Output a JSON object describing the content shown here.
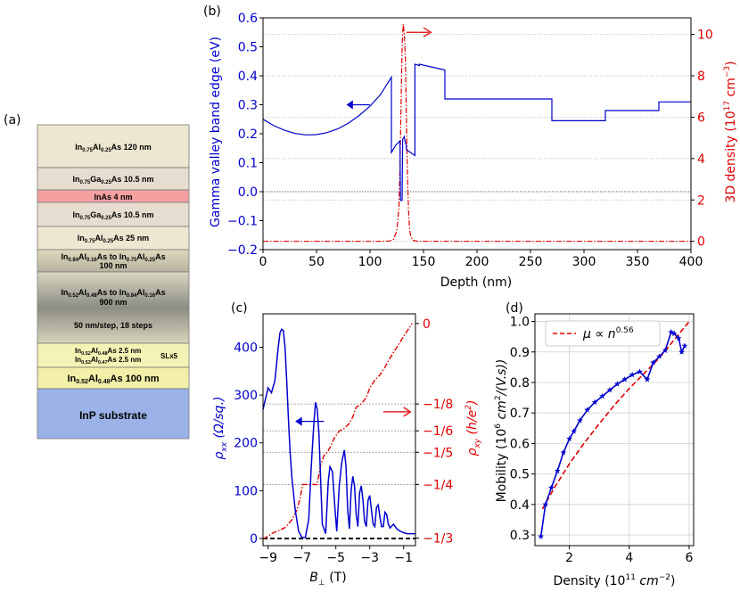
{
  "panels": {
    "a": "(a)",
    "b": "(b)",
    "c": "(c)",
    "d": "(d)"
  },
  "layers": [
    {
      "label": "In0.75Al0.25As  120 nm",
      "color": "#ede6d0"
    },
    {
      "label": "In0.75Ga0.25As  10.5 nm",
      "color": "#e6ddd0"
    },
    {
      "label": "InAs 4 nm",
      "color": "#f4a0a0"
    },
    {
      "label": "In0.75Ga0.25As  10.5 nm",
      "color": "#e6ddd0"
    },
    {
      "label": "In0.75Al0.25As  25 nm",
      "color": "#ede6d0"
    },
    {
      "label": "In0.84Al0.16As to In0.75Al0.25As 100 nm",
      "color": "#cfcab0"
    },
    {
      "label": "In0.52Al0.48As to In0.84Al0.16As 900 nm | 50 nm/step, 18 steps",
      "color": "#a9a89a"
    },
    {
      "label": "In0.52Al0.48As 2.5 nm / In0.53Al0.47As 2.5 nm  SLx5",
      "color": "#f4f2b4"
    },
    {
      "label": "In0.52Al0.48As 100 nm",
      "color": "#f1efa8"
    },
    {
      "label": "InP substrate",
      "color": "#9bb2e8"
    }
  ],
  "layer_text": {
    "l0": [
      "In",
      "0.75",
      "Al",
      "0.25",
      "As  120 nm"
    ],
    "l1": [
      "In",
      "0.75",
      "Ga",
      "0.25",
      "As  10.5 nm"
    ],
    "l2": "InAs 4 nm",
    "l3": [
      "In",
      "0.75",
      "Ga",
      "0.25",
      "As  10.5 nm"
    ],
    "l4": [
      "In",
      "0.75",
      "Al",
      "0.25",
      "As  25 nm"
    ],
    "l5a": [
      "In",
      "0.84",
      "Al",
      "0.16",
      "As to In",
      "0.75",
      "Al",
      "0.25",
      "As"
    ],
    "l5b": "100 nm",
    "l6a": [
      "In",
      "0.52",
      "Al",
      "0.48",
      "As to In",
      "0.84",
      "Al",
      "0.16",
      "As"
    ],
    "l6b": "900 nm",
    "l6c": "50 nm/step, 18 steps",
    "l7a": [
      "In",
      "0.52",
      "Al",
      "0.48",
      "As 2.5 nm"
    ],
    "l7b": [
      "In",
      "0.53",
      "Al",
      "0.47",
      "As 2.5 nm"
    ],
    "l7c": "SLx5",
    "l8": [
      "In",
      "0.52",
      "Al",
      "0.48",
      "As 100 nm"
    ],
    "l9": "InP substrate"
  },
  "chart_data": [
    {
      "id": "b",
      "type": "line",
      "xlabel": "Depth (nm)",
      "ylabel": "Gamma valley band edge (eV)",
      "y2label": "3D density (10^17 cm^-3)",
      "y2label_parts": [
        "3D density (10",
        "17",
        " cm",
        "−3",
        ")"
      ],
      "xlim": [
        0,
        400
      ],
      "ylim": [
        -0.2,
        0.6
      ],
      "y2lim": [
        -0.4,
        10.8
      ],
      "xticks": [
        0,
        50,
        100,
        150,
        200,
        250,
        300,
        350,
        400
      ],
      "yticks": [
        "−0.2",
        "−0.1",
        "0.0",
        "0.1",
        "0.2",
        "0.3",
        "0.4",
        "0.5",
        "0.6"
      ],
      "y2ticks": [
        0,
        2,
        4,
        6,
        8,
        10
      ],
      "colors": {
        "band": "#0000cc",
        "density": "#dd0000"
      },
      "series": [
        {
          "axis": "left",
          "x": [
            0,
            10,
            20,
            30,
            40,
            50,
            60,
            70,
            80,
            90,
            100,
            110,
            120,
            120,
            124,
            128,
            128.5,
            130,
            130.5,
            132,
            133,
            134,
            134,
            142,
            142,
            146,
            146,
            170,
            170,
            270,
            270,
            320,
            320,
            370,
            370,
            400
          ],
          "y": [
            0.25,
            0.228,
            0.212,
            0.201,
            0.196,
            0.197,
            0.204,
            0.217,
            0.237,
            0.263,
            0.295,
            0.336,
            0.395,
            0.135,
            0.16,
            0.175,
            -0.03,
            -0.03,
            0.18,
            0.19,
            0.17,
            0.16,
            0.145,
            0.125,
            0.44,
            0.435,
            0.44,
            0.42,
            0.32,
            0.32,
            0.245,
            0.245,
            0.28,
            0.28,
            0.31,
            0.31
          ]
        },
        {
          "axis": "right",
          "x": [
            0,
            110,
            118,
            122,
            125,
            127,
            128,
            129,
            130,
            131,
            132,
            133,
            134,
            135,
            136,
            137,
            138,
            140,
            145,
            150,
            400
          ],
          "y": [
            0.0,
            0.0,
            0.02,
            0.1,
            0.5,
            1.6,
            3.5,
            6.5,
            9.4,
            10.5,
            10.1,
            9.0,
            6.0,
            3.2,
            1.5,
            0.6,
            0.25,
            0.05,
            0.0,
            0.0,
            0.0
          ]
        }
      ]
    },
    {
      "id": "c",
      "type": "line",
      "xlabel": "B⊥ (T)",
      "xlabel_parts": [
        "B",
        "⊥",
        " (T)"
      ],
      "ylabel_parts": [
        "ρ",
        "xx",
        " (Ω/sq.)"
      ],
      "y2label_parts": [
        "ρ",
        "xy",
        " (h/e",
        "2",
        ")"
      ],
      "xlim": [
        -9.3,
        -0.3
      ],
      "ylim": [
        -15,
        470
      ],
      "xticks": [
        "−9",
        "−7",
        "−5",
        "−3",
        "−1"
      ],
      "yticks": [
        0,
        100,
        200,
        300,
        400
      ],
      "y2ticks": [
        "0",
        "−1/8",
        "−1/6",
        "−1/5",
        "−1/4",
        "−1/3"
      ],
      "y2tick_values": [
        0,
        -0.125,
        -0.1667,
        -0.2,
        -0.25,
        -0.3333
      ],
      "y2lim": [
        -0.345,
        0.015
      ],
      "colors": {
        "rxx": "#0000cc",
        "rxy": "#dd0000",
        "zero": "#000000",
        "grid": "#888888"
      },
      "series": [
        {
          "name": "rxx",
          "axis": "left",
          "x": [
            -9.3,
            -9.1,
            -9.0,
            -8.8,
            -8.6,
            -8.4,
            -8.3,
            -8.2,
            -8.1,
            -8.0,
            -7.9,
            -7.8,
            -7.7,
            -7.6,
            -7.4,
            -7.2,
            -7.0,
            -6.8,
            -6.6,
            -6.45,
            -6.3,
            -6.2,
            -6.1,
            -6.0,
            -5.95,
            -5.8,
            -5.6,
            -5.45,
            -5.35,
            -5.2,
            -5.05,
            -4.95,
            -4.8,
            -4.65,
            -4.5,
            -4.4,
            -4.3,
            -4.2,
            -4.1,
            -4.0,
            -3.9,
            -3.8,
            -3.7,
            -3.6,
            -3.5,
            -3.4,
            -3.3,
            -3.2,
            -3.1,
            -3.0,
            -2.9,
            -2.8,
            -2.7,
            -2.6,
            -2.5,
            -2.4,
            -2.3,
            -2.2,
            -2.1,
            -2.0,
            -1.9,
            -1.8,
            -1.6,
            -1.4,
            -1.2,
            -1.0,
            -0.8,
            -0.6,
            -0.3
          ],
          "y": [
            270,
            300,
            315,
            305,
            330,
            400,
            430,
            438,
            435,
            400,
            330,
            250,
            180,
            130,
            60,
            15,
            2,
            2,
            40,
            150,
            240,
            285,
            270,
            220,
            170,
            30,
            10,
            120,
            150,
            140,
            60,
            15,
            110,
            160,
            185,
            150,
            60,
            20,
            100,
            130,
            110,
            50,
            25,
            95,
            110,
            80,
            35,
            25,
            80,
            90,
            60,
            30,
            25,
            65,
            70,
            45,
            25,
            25,
            55,
            50,
            30,
            22,
            30,
            20,
            15,
            12,
            10,
            10,
            10
          ]
        },
        {
          "name": "rxy",
          "axis": "right",
          "x": [
            -9.3,
            -9.0,
            -8.7,
            -8.4,
            -8.0,
            -7.6,
            -7.3,
            -7.1,
            -6.95,
            -6.6,
            -6.3,
            -6.1,
            -6.0,
            -5.9,
            -5.7,
            -5.5,
            -5.3,
            -5.1,
            -4.8,
            -4.5,
            -4.2,
            -4.0,
            -3.8,
            -3.5,
            -3.2,
            -3.0,
            -2.7,
            -2.4,
            -2.1,
            -1.9,
            -1.6,
            -1.3,
            -1.0,
            -0.7,
            -0.5
          ],
          "y": [
            -0.335,
            -0.33,
            -0.325,
            -0.322,
            -0.317,
            -0.305,
            -0.29,
            -0.27,
            -0.25,
            -0.25,
            -0.25,
            -0.25,
            -0.235,
            -0.22,
            -0.205,
            -0.2,
            -0.19,
            -0.178,
            -0.167,
            -0.163,
            -0.155,
            -0.145,
            -0.13,
            -0.125,
            -0.115,
            -0.1,
            -0.088,
            -0.08,
            -0.068,
            -0.058,
            -0.045,
            -0.033,
            -0.02,
            -0.008,
            0.0
          ]
        }
      ]
    },
    {
      "id": "d",
      "type": "line",
      "xlabel_parts": [
        "Density (10",
        "11",
        " cm",
        "−2",
        ")"
      ],
      "ylabel_parts": [
        "Mobility (10",
        "6",
        " cm",
        "2",
        "/(V.s))"
      ],
      "xlim": [
        0.85,
        6.15
      ],
      "ylim": [
        0.265,
        1.025
      ],
      "xticks": [
        2,
        4,
        6
      ],
      "yticks": [
        "0.3",
        "0.4",
        "0.5",
        "0.6",
        "0.7",
        "0.8",
        "0.9",
        "1.0"
      ],
      "legend": {
        "position": "top-left",
        "label_parts": [
          "μ ∝ n",
          "0.56"
        ]
      },
      "colors": {
        "data": "#0000cc",
        "fit": "#dd0000"
      },
      "series": [
        {
          "name": "data",
          "style": "solid-star",
          "x": [
            1.05,
            1.2,
            1.4,
            1.6,
            1.8,
            2.0,
            2.15,
            2.35,
            2.6,
            2.85,
            3.1,
            3.35,
            3.6,
            3.85,
            4.1,
            4.35,
            4.6,
            4.8,
            5.0,
            5.2,
            5.4,
            5.5,
            5.65,
            5.75,
            5.85
          ],
          "y": [
            0.295,
            0.4,
            0.455,
            0.51,
            0.57,
            0.615,
            0.64,
            0.675,
            0.71,
            0.735,
            0.755,
            0.775,
            0.795,
            0.81,
            0.825,
            0.835,
            0.81,
            0.865,
            0.885,
            0.905,
            0.965,
            0.96,
            0.945,
            0.9,
            0.92
          ]
        },
        {
          "name": "μ ∝ n^0.56",
          "style": "dashed",
          "x": [
            1.1,
            1.5,
            2.0,
            2.5,
            3.0,
            3.5,
            4.0,
            4.5,
            5.0,
            5.5,
            6.0
          ],
          "y": [
            0.385,
            0.455,
            0.533,
            0.602,
            0.665,
            0.725,
            0.78,
            0.83,
            0.88,
            0.94,
            1.0
          ]
        }
      ]
    }
  ]
}
